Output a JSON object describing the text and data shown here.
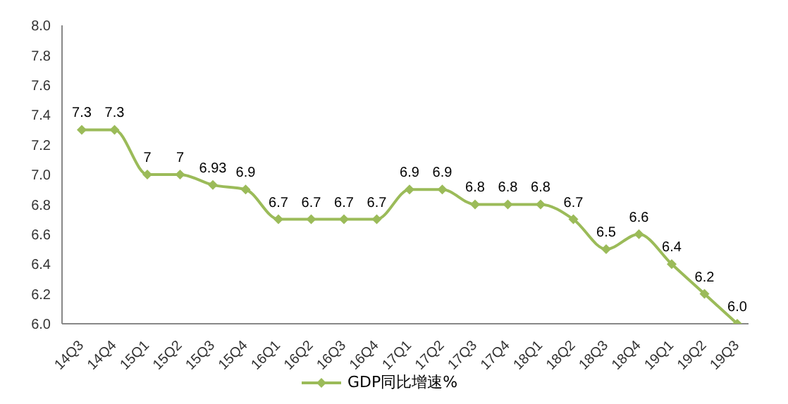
{
  "chart_data": {
    "type": "line",
    "categories": [
      "14Q3",
      "14Q4",
      "15Q1",
      "15Q2",
      "15Q3",
      "15Q4",
      "16Q1",
      "16Q2",
      "16Q3",
      "16Q4",
      "17Q1",
      "17Q2",
      "17Q3",
      "17Q4",
      "18Q1",
      "18Q2",
      "18Q3",
      "18Q4",
      "19Q1",
      "19Q2",
      "19Q3"
    ],
    "series": [
      {
        "name": "GDP同比增速%",
        "color": "#9bbb59",
        "values": [
          7.3,
          7.3,
          7,
          7,
          6.93,
          6.9,
          6.7,
          6.7,
          6.7,
          6.7,
          6.9,
          6.9,
          6.8,
          6.8,
          6.8,
          6.7,
          6.5,
          6.6,
          6.4,
          6.2,
          6.0
        ],
        "value_labels": [
          "7.3",
          "7.3",
          "7",
          "7",
          "6.93",
          "6.9",
          "6.7",
          "6.7",
          "6.7",
          "6.7",
          "6.9",
          "6.9",
          "6.8",
          "6.8",
          "6.8",
          "6.7",
          "6.5",
          "6.6",
          "6.4",
          "6.2",
          "6.0"
        ]
      }
    ],
    "ylim": [
      6,
      8
    ],
    "yticks": [
      {
        "value": 6,
        "label": "6.0"
      },
      {
        "value": 6.2,
        "label": "6.2"
      },
      {
        "value": 6.4,
        "label": "6.4"
      },
      {
        "value": 6.6,
        "label": "6.6"
      },
      {
        "value": 6.8,
        "label": "6.8"
      },
      {
        "value": 7,
        "label": "7.0"
      },
      {
        "value": 7.2,
        "label": "7.2"
      },
      {
        "value": 7.4,
        "label": "7.4"
      },
      {
        "value": 7.6,
        "label": "7.6"
      },
      {
        "value": 7.8,
        "label": "7.8"
      },
      {
        "value": 8,
        "label": "8.0"
      }
    ],
    "grid": false,
    "legend": "bottom",
    "marker": "diamond",
    "line_style": "solid"
  }
}
